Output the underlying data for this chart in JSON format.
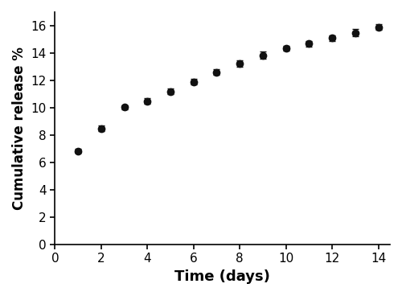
{
  "x": [
    1,
    2,
    3,
    4,
    5,
    6,
    7,
    8,
    9,
    10,
    11,
    12,
    13,
    14
  ],
  "y": [
    6.85,
    8.5,
    10.05,
    10.5,
    11.2,
    11.9,
    12.6,
    13.25,
    13.85,
    14.35,
    14.7,
    15.1,
    15.5,
    15.9
  ],
  "yerr": [
    0.15,
    0.2,
    0.15,
    0.2,
    0.2,
    0.2,
    0.2,
    0.25,
    0.25,
    0.2,
    0.2,
    0.2,
    0.25,
    0.2
  ],
  "xlabel": "Time (days)",
  "ylabel": "Cumulative release %",
  "xlim": [
    0,
    14.5
  ],
  "ylim": [
    0,
    17
  ],
  "xticks": [
    0,
    2,
    4,
    6,
    8,
    10,
    12,
    14
  ],
  "yticks": [
    0,
    2,
    4,
    6,
    8,
    10,
    12,
    14,
    16
  ],
  "line_color": "#555555",
  "marker_color": "#111111",
  "marker": "o",
  "markersize": 6,
  "linewidth": 1.5,
  "capsize": 3,
  "xlabel_fontsize": 13,
  "ylabel_fontsize": 12,
  "tick_fontsize": 11,
  "xlabel_fontweight": "bold",
  "ylabel_fontweight": "bold"
}
